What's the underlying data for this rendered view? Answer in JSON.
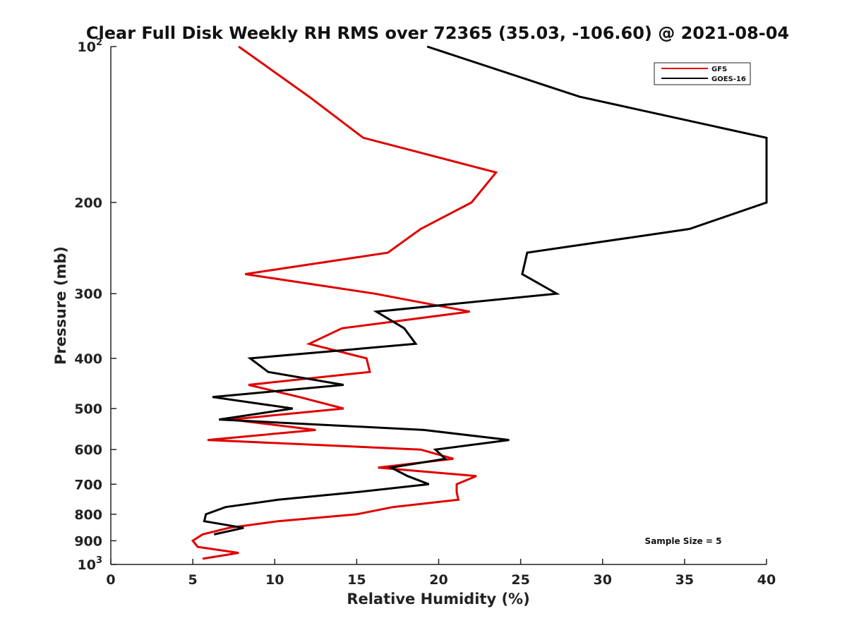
{
  "chart_data": {
    "type": "line",
    "title": "Clear Full Disk Weekly RH RMS over 72365 (35.03, -106.60) @ 2021-08-04",
    "xlabel": "Relative Humidity (%)",
    "ylabel": "Pressure (mb)",
    "xlim": [
      0,
      40
    ],
    "ylim": [
      100,
      1000
    ],
    "y_scale": "log",
    "y_reversed": true,
    "x_ticks": [
      0,
      5,
      10,
      15,
      20,
      25,
      30,
      35,
      40
    ],
    "y_ticks": [
      {
        "value": 100,
        "label": "10",
        "sup": "2"
      },
      {
        "value": 200,
        "label": "200"
      },
      {
        "value": 300,
        "label": "300"
      },
      {
        "value": 400,
        "label": "400"
      },
      {
        "value": 500,
        "label": "500"
      },
      {
        "value": 600,
        "label": "600"
      },
      {
        "value": 700,
        "label": "700"
      },
      {
        "value": 800,
        "label": "800"
      },
      {
        "value": 900,
        "label": "900"
      },
      {
        "value": 1000,
        "label": "10",
        "sup": "3"
      }
    ],
    "grid": false,
    "legend_position": "top-right",
    "annotation": "Sample Size = 5",
    "series": [
      {
        "name": "GFS",
        "color": "#e00000",
        "points": [
          [
            7.8,
            100
          ],
          [
            12.1,
            125
          ],
          [
            15.4,
            150
          ],
          [
            23.5,
            175
          ],
          [
            22.0,
            200
          ],
          [
            18.9,
            225
          ],
          [
            16.9,
            250
          ],
          [
            8.2,
            275
          ],
          [
            16.1,
            300
          ],
          [
            21.9,
            325
          ],
          [
            14.1,
            350
          ],
          [
            12.1,
            375
          ],
          [
            15.6,
            400
          ],
          [
            15.8,
            425
          ],
          [
            8.4,
            450
          ],
          [
            11.5,
            475
          ],
          [
            14.2,
            500
          ],
          [
            7.3,
            525
          ],
          [
            12.5,
            550
          ],
          [
            5.9,
            575
          ],
          [
            18.9,
            600
          ],
          [
            20.9,
            625
          ],
          [
            16.3,
            650
          ],
          [
            22.3,
            675
          ],
          [
            21.1,
            700
          ],
          [
            21.1,
            725
          ],
          [
            21.2,
            750
          ],
          [
            17.2,
            775
          ],
          [
            15.0,
            800
          ],
          [
            10.2,
            825
          ],
          [
            7.2,
            850
          ],
          [
            5.6,
            875
          ],
          [
            5.0,
            900
          ],
          [
            5.3,
            925
          ],
          [
            7.8,
            950
          ],
          [
            5.6,
            975
          ]
        ]
      },
      {
        "name": "GOES-16",
        "color": "#000000",
        "points": [
          [
            19.3,
            100
          ],
          [
            28.6,
            125
          ],
          [
            40.0,
            150
          ],
          [
            40.0,
            200
          ],
          [
            35.3,
            225
          ],
          [
            25.4,
            250
          ],
          [
            25.1,
            275
          ],
          [
            27.2,
            300
          ],
          [
            16.2,
            325
          ],
          [
            17.9,
            350
          ],
          [
            18.6,
            375
          ],
          [
            8.5,
            400
          ],
          [
            9.6,
            425
          ],
          [
            14.2,
            450
          ],
          [
            6.2,
            475
          ],
          [
            11.1,
            500
          ],
          [
            6.6,
            525
          ],
          [
            19.1,
            550
          ],
          [
            24.3,
            575
          ],
          [
            19.8,
            600
          ],
          [
            20.4,
            625
          ],
          [
            17.1,
            650
          ],
          [
            18.1,
            675
          ],
          [
            19.4,
            700
          ],
          [
            15.0,
            725
          ],
          [
            10.2,
            750
          ],
          [
            7.0,
            775
          ],
          [
            5.8,
            800
          ],
          [
            5.7,
            825
          ],
          [
            8.1,
            850
          ],
          [
            6.3,
            875
          ]
        ]
      }
    ]
  }
}
